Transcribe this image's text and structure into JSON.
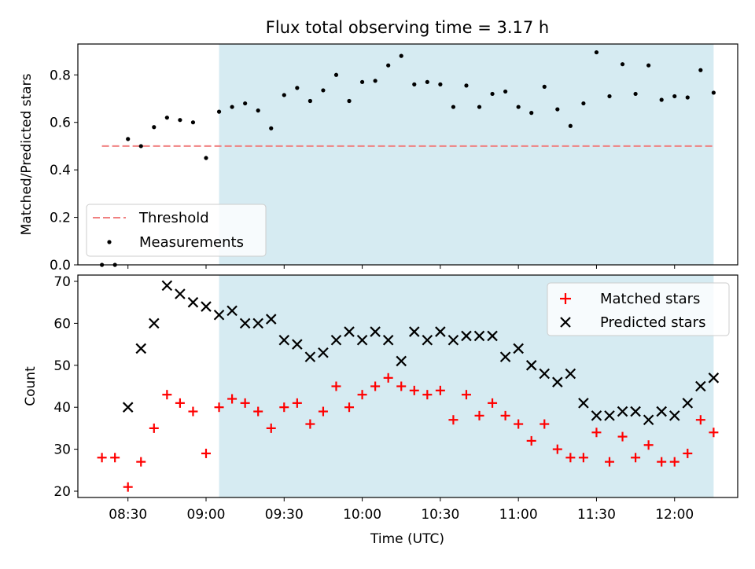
{
  "title": "Flux total observing time = 3.17 h",
  "colors": {
    "shade": "#add8e6",
    "threshold": "#f08080",
    "matched": "#ff0000",
    "predicted": "#000000",
    "measurement": "#000000"
  },
  "chart_data": [
    {
      "type": "scatter",
      "ylabel": "Matched/Predicted stars",
      "ylim": [
        0,
        0.93
      ],
      "yticks": [
        "0.0",
        "0.2",
        "0.4",
        "0.6",
        "0.8"
      ],
      "ytick_values": [
        0,
        0.2,
        0.4,
        0.6,
        0.8
      ],
      "shaded_span": [
        "09:05",
        "12:15"
      ],
      "threshold": {
        "name": "Threshold",
        "value": 0.5,
        "x_range": [
          "08:20",
          "12:15"
        ]
      },
      "legend": {
        "placement": "lower-left",
        "entries": [
          "Threshold",
          "Measurements"
        ]
      },
      "series": [
        {
          "name": "Measurements",
          "x": [
            "08:20",
            "08:25",
            "08:30",
            "08:35",
            "08:40",
            "08:45",
            "08:50",
            "08:55",
            "09:00",
            "09:05",
            "09:10",
            "09:15",
            "09:20",
            "09:25",
            "09:30",
            "09:35",
            "09:40",
            "09:45",
            "09:50",
            "09:55",
            "10:00",
            "10:05",
            "10:10",
            "10:15",
            "10:20",
            "10:25",
            "10:30",
            "10:35",
            "10:40",
            "10:45",
            "10:50",
            "10:55",
            "11:00",
            "11:05",
            "11:10",
            "11:15",
            "11:20",
            "11:25",
            "11:30",
            "11:35",
            "11:40",
            "11:45",
            "11:50",
            "11:55",
            "12:00",
            "12:05",
            "12:10",
            "12:15"
          ],
          "y": [
            0.0,
            0.0,
            0.53,
            0.5,
            0.58,
            0.62,
            0.61,
            0.6,
            0.45,
            0.645,
            0.665,
            0.68,
            0.65,
            0.575,
            0.715,
            0.745,
            0.69,
            0.735,
            0.8,
            0.69,
            0.77,
            0.775,
            0.84,
            0.88,
            0.76,
            0.77,
            0.76,
            0.665,
            0.755,
            0.665,
            0.72,
            0.73,
            0.665,
            0.64,
            0.75,
            0.655,
            0.585,
            0.68,
            0.895,
            0.71,
            0.845,
            0.72,
            0.84,
            0.695,
            0.71,
            0.705,
            0.82,
            0.725
          ]
        }
      ]
    },
    {
      "type": "scatter",
      "xlabel": "Time (UTC)",
      "ylabel": "Count",
      "ylim": [
        18.5,
        71.5
      ],
      "yticks": [
        "20",
        "30",
        "40",
        "50",
        "60",
        "70"
      ],
      "ytick_values": [
        20,
        30,
        40,
        50,
        60,
        70
      ],
      "xticks": [
        "08:30",
        "09:00",
        "09:30",
        "10:00",
        "10:30",
        "11:00",
        "11:30",
        "12:00"
      ],
      "shaded_span": [
        "09:05",
        "12:15"
      ],
      "legend": {
        "placement": "top-right",
        "entries": [
          "Matched stars",
          "Predicted stars"
        ]
      },
      "series": [
        {
          "name": "Matched stars",
          "x": [
            "08:20",
            "08:25",
            "08:30",
            "08:35",
            "08:40",
            "08:45",
            "08:50",
            "08:55",
            "09:00",
            "09:05",
            "09:10",
            "09:15",
            "09:20",
            "09:25",
            "09:30",
            "09:35",
            "09:40",
            "09:45",
            "09:50",
            "09:55",
            "10:00",
            "10:05",
            "10:10",
            "10:15",
            "10:20",
            "10:25",
            "10:30",
            "10:35",
            "10:40",
            "10:45",
            "10:50",
            "10:55",
            "11:00",
            "11:05",
            "11:10",
            "11:15",
            "11:20",
            "11:25",
            "11:30",
            "11:35",
            "11:40",
            "11:45",
            "11:50",
            "11:55",
            "12:00",
            "12:05",
            "12:10",
            "12:15"
          ],
          "y": [
            28,
            28,
            21,
            27,
            35,
            43,
            41,
            39,
            29,
            40,
            42,
            41,
            39,
            35,
            40,
            41,
            36,
            39,
            45,
            40,
            43,
            45,
            47,
            45,
            44,
            43,
            44,
            37,
            43,
            38,
            41,
            38,
            36,
            32,
            36,
            30,
            28,
            28,
            34,
            27,
            33,
            28,
            31,
            27,
            27,
            29,
            37,
            34
          ]
        },
        {
          "name": "Predicted stars",
          "x": [
            "08:30",
            "08:35",
            "08:40",
            "08:45",
            "08:50",
            "08:55",
            "09:00",
            "09:05",
            "09:10",
            "09:15",
            "09:20",
            "09:25",
            "09:30",
            "09:35",
            "09:40",
            "09:45",
            "09:50",
            "09:55",
            "10:00",
            "10:05",
            "10:10",
            "10:15",
            "10:20",
            "10:25",
            "10:30",
            "10:35",
            "10:40",
            "10:45",
            "10:50",
            "10:55",
            "11:00",
            "11:05",
            "11:10",
            "11:15",
            "11:20",
            "11:25",
            "11:30",
            "11:35",
            "11:40",
            "11:45",
            "11:50",
            "11:55",
            "12:00",
            "12:05",
            "12:10",
            "12:15"
          ],
          "y": [
            40,
            54,
            60,
            69,
            67,
            65,
            64,
            62,
            63,
            60,
            60,
            61,
            56,
            55,
            52,
            53,
            56,
            58,
            56,
            58,
            56,
            51,
            58,
            56,
            58,
            56,
            57,
            57,
            57,
            52,
            54,
            50,
            48,
            46,
            48,
            41,
            38,
            38,
            39,
            39,
            37,
            39,
            38,
            41,
            45,
            47
          ]
        }
      ]
    }
  ]
}
